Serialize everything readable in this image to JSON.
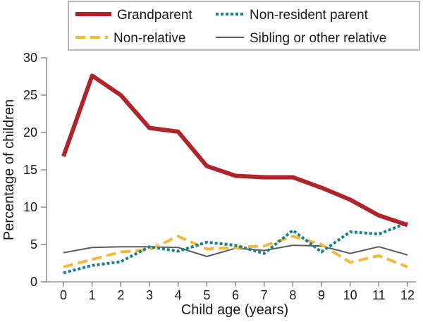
{
  "chart_data": {
    "type": "line",
    "title": "",
    "xlabel": "Child age (years)",
    "ylabel": "Percentage of children",
    "x": [
      0,
      1,
      2,
      3,
      4,
      5,
      6,
      7,
      8,
      9,
      10,
      11,
      12
    ],
    "x_tick_labels": [
      "0",
      "1",
      "2",
      "3",
      "4",
      "5",
      "6",
      "7",
      "8",
      "9",
      "10",
      "11",
      "12"
    ],
    "ylim": [
      0,
      30
    ],
    "y_ticks": [
      0,
      5,
      10,
      15,
      20,
      25,
      30
    ],
    "y_tick_labels": [
      "0",
      "5",
      "10",
      "15",
      "20",
      "25",
      "30"
    ],
    "grid": false,
    "legend_position": "top",
    "series": [
      {
        "name": "Grandparent",
        "color": "#b0232a",
        "style": "solid",
        "width": "thick",
        "values": [
          16.8,
          27.6,
          25.0,
          20.6,
          20.1,
          15.5,
          14.2,
          14.0,
          14.0,
          12.6,
          11.0,
          8.9,
          7.6
        ]
      },
      {
        "name": "Non-resident parent",
        "color": "#1a7e8e",
        "style": "dotted",
        "width": "medium",
        "values": [
          1.2,
          2.2,
          2.7,
          4.7,
          4.1,
          5.3,
          4.9,
          3.8,
          6.9,
          4.0,
          6.7,
          6.4,
          7.9
        ]
      },
      {
        "name": "Non-relative",
        "color": "#f4b93c",
        "style": "dashed",
        "width": "medium",
        "values": [
          2.0,
          3.0,
          4.0,
          4.3,
          6.1,
          4.4,
          4.6,
          4.8,
          6.1,
          5.0,
          2.6,
          3.5,
          2.0
        ]
      },
      {
        "name": "Sibling or other relative",
        "color": "#5a5a5a",
        "style": "solid",
        "width": "thin",
        "values": [
          3.9,
          4.6,
          4.7,
          4.7,
          4.6,
          3.4,
          4.5,
          4.2,
          4.9,
          4.8,
          3.8,
          4.7,
          3.6
        ]
      }
    ]
  }
}
